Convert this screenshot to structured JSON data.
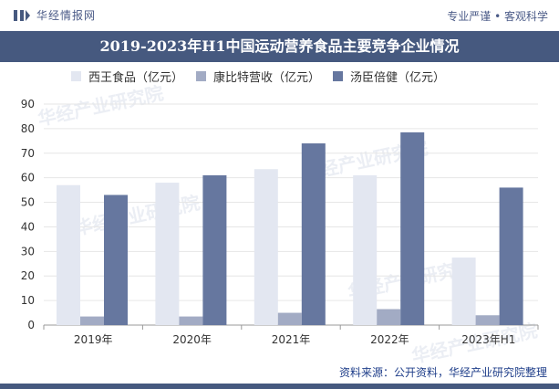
{
  "header": {
    "brand_name": "华经情报网",
    "tagline": "专业严谨 • 客观科学"
  },
  "watermark": "华经产业研究院",
  "source_text": "资料来源：公开资料，华经产业研究院整理",
  "colors": {
    "header_bar": "#46597f",
    "series_1": "#e3e7f1",
    "series_2": "#a2abc4",
    "series_3": "#66779f"
  },
  "chart_data": {
    "type": "bar",
    "title": "2019-2023年H1中国运动营养食品主要竞争企业情况",
    "categories": [
      "2019年",
      "2020年",
      "2021年",
      "2022年",
      "2023年H1"
    ],
    "series": [
      {
        "name": "西王食品（亿元）",
        "values": [
          57,
          58,
          63.5,
          61,
          27.5
        ]
      },
      {
        "name": "康比特营收（亿元）",
        "values": [
          3.5,
          3.5,
          5,
          6.5,
          4
        ]
      },
      {
        "name": "汤臣倍健（亿元）",
        "values": [
          53,
          61,
          74,
          78.5,
          56
        ]
      }
    ],
    "yticks": [
      "0",
      "10",
      "20",
      "30",
      "40",
      "50",
      "60",
      "70",
      "80",
      "90"
    ],
    "ylim": [
      0,
      90
    ],
    "grid": true,
    "legend": "top-left"
  }
}
